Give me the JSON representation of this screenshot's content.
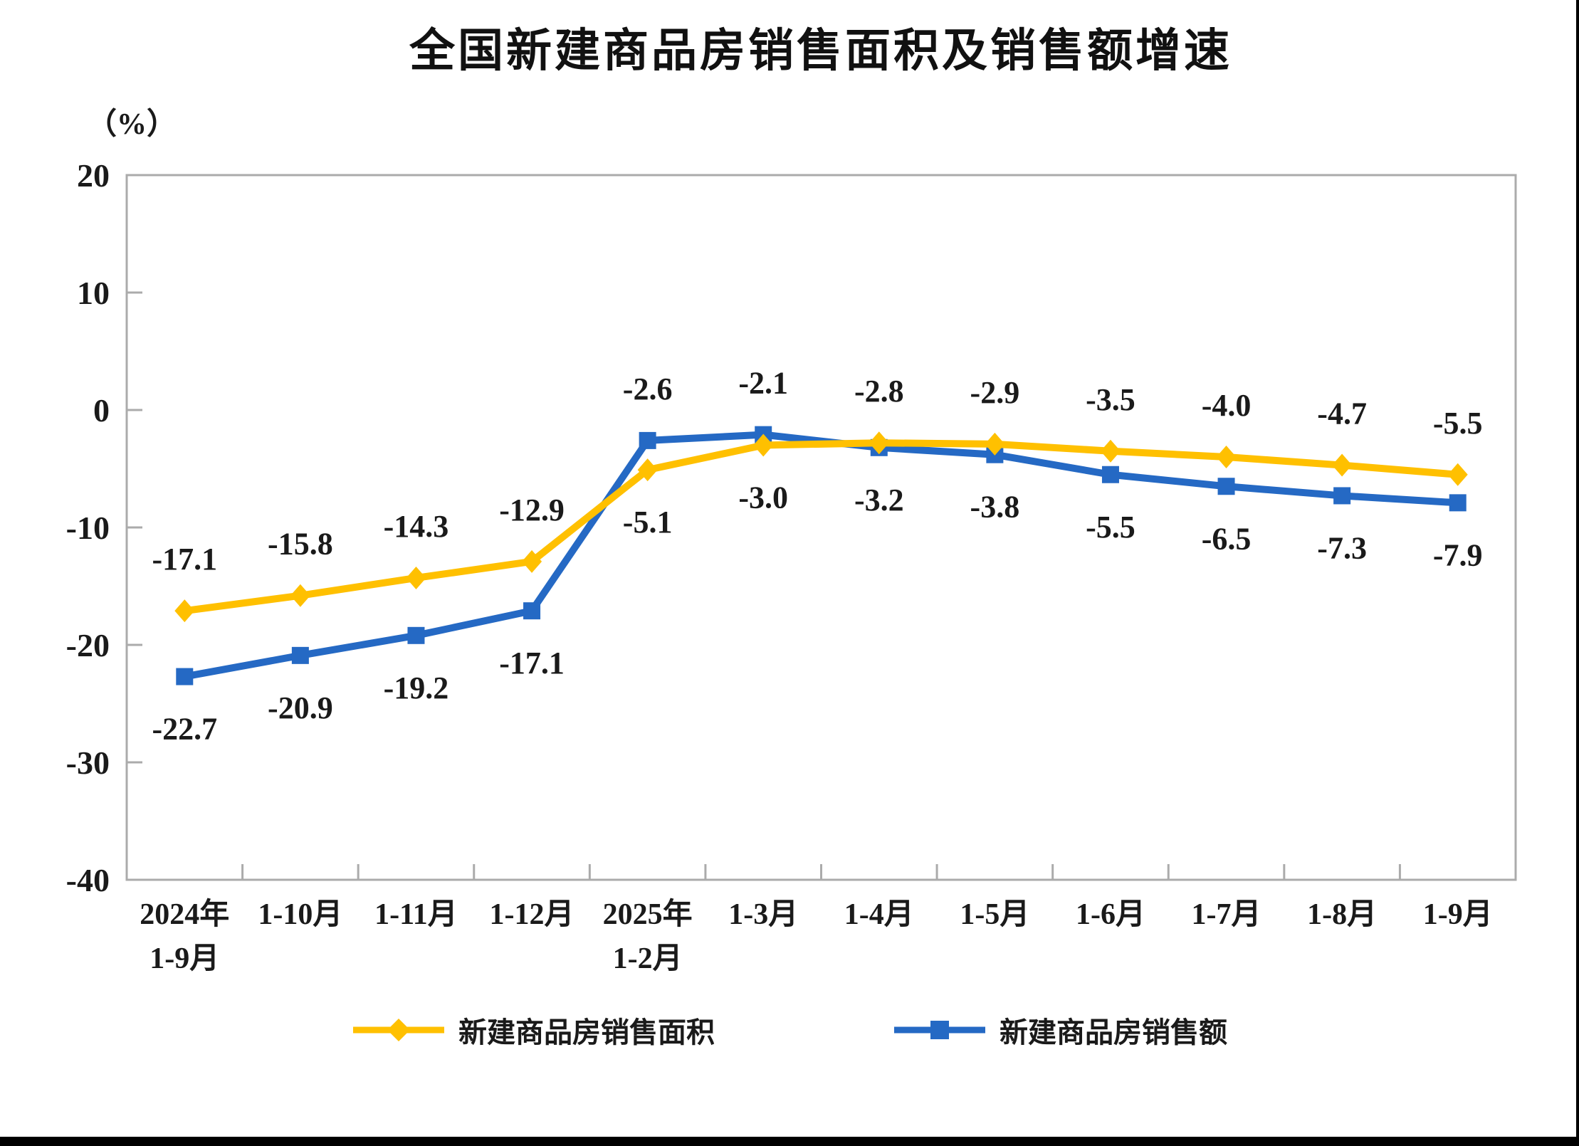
{
  "page": {
    "title": "全国新建商品房销售面积及销售额增速",
    "unit_label": "（%）"
  },
  "chart_data": {
    "type": "line",
    "title": "全国新建商品房销售面积及销售额增速",
    "ylabel": "（%）",
    "ylim": [
      -40,
      20
    ],
    "yticks": [
      20,
      10,
      0,
      -10,
      -20,
      -30,
      -40
    ],
    "grid": false,
    "legend_position": "bottom",
    "categories": [
      "2024年\n1-9月",
      "1-10月",
      "1-11月",
      "1-12月",
      "2025年\n1-2月",
      "1-3月",
      "1-4月",
      "1-5月",
      "1-6月",
      "1-7月",
      "1-8月",
      "1-9月"
    ],
    "series": [
      {
        "name": "新建商品房销售面积",
        "color": "#FFC000",
        "marker": "diamond",
        "values": [
          -17.1,
          -15.8,
          -14.3,
          -12.9,
          -5.1,
          -3.0,
          -2.8,
          -2.9,
          -3.5,
          -4.0,
          -4.7,
          -5.5
        ]
      },
      {
        "name": "新建商品房销售额",
        "color": "#2569C4",
        "marker": "square",
        "values": [
          -22.7,
          -20.9,
          -19.2,
          -17.1,
          -2.6,
          -2.1,
          -3.2,
          -3.8,
          -5.5,
          -6.5,
          -7.3,
          -7.9
        ]
      }
    ]
  },
  "style": {
    "axis_color": "#ABABAB",
    "text_color": "#1a1a1a"
  }
}
